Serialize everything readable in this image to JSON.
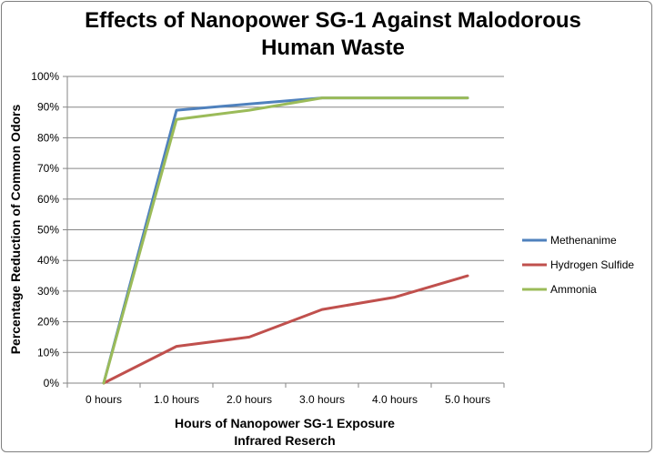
{
  "chart_data": {
    "type": "line",
    "title_lines": [
      "Effects of Nanopower SG-1 Against Malodorous",
      "Human Waste"
    ],
    "xlabel_lines": [
      "Hours of Nanopower SG-1 Exposure",
      "Infrared Reserch"
    ],
    "ylabel": "Percentage Reduction of Common Odors",
    "categories": [
      "0 hours",
      "1.0 hours",
      "2.0 hours",
      "3.0 hours",
      "4.0 hours",
      "5.0 hours"
    ],
    "ylim": [
      0,
      100
    ],
    "y_ticks": [
      "0%",
      "10%",
      "20%",
      "30%",
      "40%",
      "50%",
      "60%",
      "70%",
      "80%",
      "90%",
      "100%"
    ],
    "grid": true,
    "legend_position": "right",
    "series": [
      {
        "name": "Methenanime",
        "color": "#4f81bd",
        "values": [
          0,
          89,
          91,
          93,
          93,
          93
        ]
      },
      {
        "name": "Hydrogen Sulfide",
        "color": "#c0504d",
        "values": [
          0,
          12,
          15,
          24,
          28,
          35
        ]
      },
      {
        "name": "Ammonia",
        "color": "#9bbb59",
        "values": [
          0,
          86,
          89,
          93,
          93,
          93
        ]
      }
    ]
  }
}
